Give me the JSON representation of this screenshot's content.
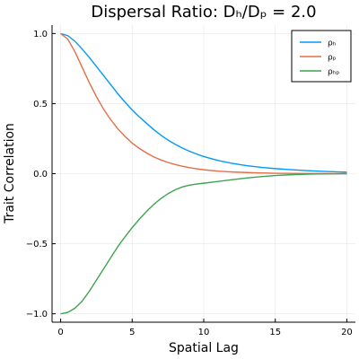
{
  "chart_data": {
    "type": "line",
    "title": "Dispersal Ratio: Dₕ/Dₚ = 2.0",
    "xlabel": "Spatial Lag",
    "ylabel": "Trait Correlation",
    "xlim": [
      -0.6,
      20.6
    ],
    "ylim": [
      -1.06,
      1.06
    ],
    "xticks": [
      0,
      5,
      10,
      15,
      20
    ],
    "xtick_labels": [
      "0",
      "5",
      "10",
      "15",
      "20"
    ],
    "yticks": [
      -1.0,
      -0.5,
      0.0,
      0.5,
      1.0
    ],
    "ytick_labels": [
      "−1.0",
      "−0.5",
      "0.0",
      "0.5",
      "1.0"
    ],
    "grid": true,
    "legend_position": "top-right",
    "series": [
      {
        "name": "ρₕ",
        "color": "#009AFA",
        "x": [
          0,
          0.5,
          1,
          1.5,
          2,
          2.5,
          3,
          3.5,
          4,
          4.5,
          5,
          5.5,
          6,
          6.5,
          7,
          7.5,
          8,
          8.5,
          9,
          9.5,
          10,
          11,
          12,
          13,
          14,
          15,
          16,
          17,
          18,
          19,
          20
        ],
        "y": [
          1.0,
          0.985,
          0.945,
          0.89,
          0.83,
          0.765,
          0.7,
          0.635,
          0.57,
          0.51,
          0.455,
          0.405,
          0.36,
          0.315,
          0.275,
          0.24,
          0.21,
          0.183,
          0.16,
          0.14,
          0.122,
          0.094,
          0.073,
          0.057,
          0.045,
          0.036,
          0.029,
          0.023,
          0.018,
          0.014,
          0.011
        ]
      },
      {
        "name": "ρₚ",
        "color": "#E36F47",
        "x": [
          0,
          0.5,
          1,
          1.5,
          2,
          2.5,
          3,
          3.5,
          4,
          4.5,
          5,
          5.5,
          6,
          6.5,
          7,
          7.5,
          8,
          8.5,
          9,
          9.5,
          10,
          11,
          12,
          13,
          14,
          15,
          16,
          17,
          18,
          19,
          20
        ],
        "y": [
          1.0,
          0.96,
          0.87,
          0.76,
          0.65,
          0.55,
          0.46,
          0.385,
          0.32,
          0.265,
          0.218,
          0.18,
          0.148,
          0.12,
          0.098,
          0.08,
          0.065,
          0.053,
          0.043,
          0.035,
          0.028,
          0.018,
          0.012,
          0.008,
          0.005,
          0.003,
          0.002,
          0.001,
          0.001,
          0.0,
          0.0
        ]
      },
      {
        "name": "ρₕₚ",
        "color": "#3EA44E",
        "x": [
          0,
          0.5,
          1,
          1.5,
          2,
          2.5,
          3,
          3.5,
          4,
          4.5,
          5,
          5.5,
          6,
          6.5,
          7,
          7.5,
          8,
          8.5,
          9,
          9.5,
          10,
          11,
          12,
          13,
          14,
          15,
          16,
          17,
          18,
          19,
          20
        ],
        "y": [
          -1.0,
          -0.99,
          -0.96,
          -0.91,
          -0.84,
          -0.76,
          -0.68,
          -0.6,
          -0.52,
          -0.45,
          -0.385,
          -0.325,
          -0.27,
          -0.22,
          -0.178,
          -0.143,
          -0.115,
          -0.095,
          -0.082,
          -0.074,
          -0.068,
          -0.056,
          -0.043,
          -0.031,
          -0.021,
          -0.013,
          -0.008,
          -0.004,
          -0.002,
          -0.001,
          0.0
        ]
      }
    ]
  }
}
